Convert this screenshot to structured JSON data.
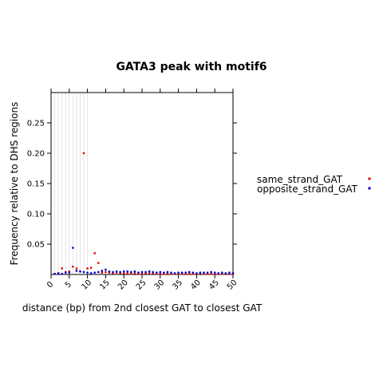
{
  "chart_data": {
    "type": "scatter",
    "title": "GATA3 peak with motif6",
    "xlabel": "distance (bp) from 2nd closest GAT to closest GAT",
    "ylabel": "Frequency relative to DHS regions",
    "xlim": [
      0,
      50
    ],
    "ylim": [
      0,
      0.3
    ],
    "x_ticks": [
      "0",
      "5",
      "10",
      "15",
      "20",
      "25",
      "30",
      "35",
      "40",
      "45",
      "50"
    ],
    "y_ticks": [
      "0.05",
      "0.10",
      "0.15",
      "0.20",
      "0.25"
    ],
    "x_tick_values": [
      0,
      5,
      10,
      15,
      20,
      25,
      30,
      35,
      40,
      45,
      50
    ],
    "y_tick_values": [
      0.05,
      0.1,
      0.15,
      0.2,
      0.25
    ],
    "grid": "vertical lines at x=1..10",
    "legend_position": "right",
    "series": [
      {
        "name": "same_strand_GAT",
        "color": "#e00000",
        "points": [
          [
            1,
            0.001
          ],
          [
            2,
            0.002
          ],
          [
            3,
            0.01
          ],
          [
            4,
            0.004
          ],
          [
            5,
            0.005
          ],
          [
            6,
            0.013
          ],
          [
            7,
            0.01
          ],
          [
            8,
            0.005
          ],
          [
            9,
            0.2
          ],
          [
            10,
            0.01
          ],
          [
            11,
            0.011
          ],
          [
            12,
            0.035
          ],
          [
            13,
            0.019
          ],
          [
            14,
            0.003
          ],
          [
            15,
            0.004
          ],
          [
            16,
            0.003
          ],
          [
            17,
            0.002
          ],
          [
            18,
            0.003
          ],
          [
            19,
            0.002
          ],
          [
            20,
            0.002
          ],
          [
            21,
            0.002
          ],
          [
            22,
            0.001
          ],
          [
            23,
            0.002
          ],
          [
            24,
            0.001
          ],
          [
            25,
            0.001
          ],
          [
            26,
            0.002
          ],
          [
            27,
            0.002
          ],
          [
            28,
            0.002
          ],
          [
            29,
            0.001
          ],
          [
            30,
            0.001
          ],
          [
            31,
            0.001
          ],
          [
            32,
            0.002
          ],
          [
            33,
            0.001
          ],
          [
            34,
            0.001
          ],
          [
            35,
            0.001
          ],
          [
            36,
            0.001
          ],
          [
            37,
            0.001
          ],
          [
            38,
            0.001
          ],
          [
            39,
            0.001
          ],
          [
            40,
            0.001
          ],
          [
            41,
            0.002
          ],
          [
            42,
            0.001
          ],
          [
            43,
            0.001
          ],
          [
            44,
            0.001
          ],
          [
            45,
            0.001
          ],
          [
            46,
            0.001
          ],
          [
            47,
            0.001
          ],
          [
            48,
            0.001
          ],
          [
            49,
            0.001
          ],
          [
            50,
            0.001
          ]
        ]
      },
      {
        "name": "opposite_strand_GAT",
        "color": "#0000cc",
        "points": [
          [
            1,
            0.001
          ],
          [
            2,
            0.002
          ],
          [
            3,
            0.001
          ],
          [
            4,
            0.003
          ],
          [
            5,
            0.003
          ],
          [
            6,
            0.044
          ],
          [
            7,
            0.006
          ],
          [
            8,
            0.005
          ],
          [
            9,
            0.004
          ],
          [
            10,
            0.003
          ],
          [
            11,
            0.002
          ],
          [
            12,
            0.003
          ],
          [
            13,
            0.004
          ],
          [
            14,
            0.006
          ],
          [
            15,
            0.008
          ],
          [
            16,
            0.005
          ],
          [
            17,
            0.004
          ],
          [
            18,
            0.005
          ],
          [
            19,
            0.004
          ],
          [
            20,
            0.005
          ],
          [
            21,
            0.005
          ],
          [
            22,
            0.004
          ],
          [
            23,
            0.005
          ],
          [
            24,
            0.003
          ],
          [
            25,
            0.004
          ],
          [
            26,
            0.004
          ],
          [
            27,
            0.005
          ],
          [
            28,
            0.004
          ],
          [
            29,
            0.003
          ],
          [
            30,
            0.004
          ],
          [
            31,
            0.003
          ],
          [
            32,
            0.004
          ],
          [
            33,
            0.003
          ],
          [
            34,
            0.002
          ],
          [
            35,
            0.003
          ],
          [
            36,
            0.003
          ],
          [
            37,
            0.003
          ],
          [
            38,
            0.004
          ],
          [
            39,
            0.003
          ],
          [
            40,
            0.002
          ],
          [
            41,
            0.003
          ],
          [
            42,
            0.003
          ],
          [
            43,
            0.003
          ],
          [
            44,
            0.004
          ],
          [
            45,
            0.003
          ],
          [
            46,
            0.002
          ],
          [
            47,
            0.003
          ],
          [
            48,
            0.002
          ],
          [
            49,
            0.003
          ],
          [
            50,
            0.002
          ]
        ]
      }
    ]
  }
}
